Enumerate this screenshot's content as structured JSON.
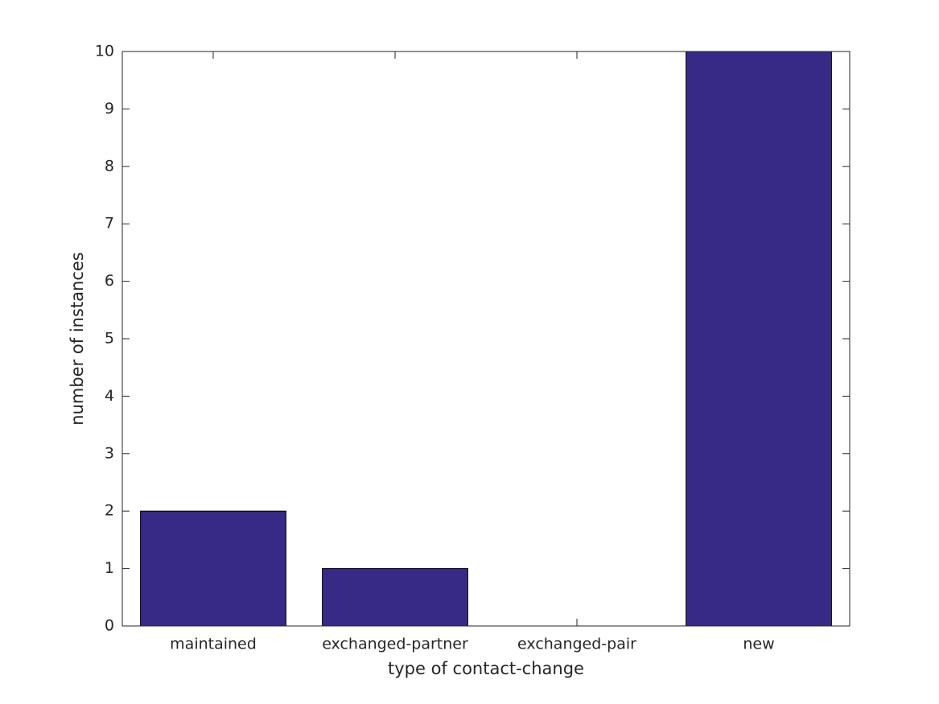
{
  "chart_data": {
    "type": "bar",
    "categories": [
      "maintained",
      "exchanged-partner",
      "exchanged-pair",
      "new"
    ],
    "values": [
      2,
      1,
      0,
      10
    ],
    "color": "#372a87",
    "xlabel": "type of contact-change",
    "ylabel": "number of instances",
    "ylim": [
      0,
      10
    ],
    "yticks": [
      0,
      1,
      2,
      3,
      4,
      5,
      6,
      7,
      8,
      9,
      10
    ],
    "grid": false
  }
}
